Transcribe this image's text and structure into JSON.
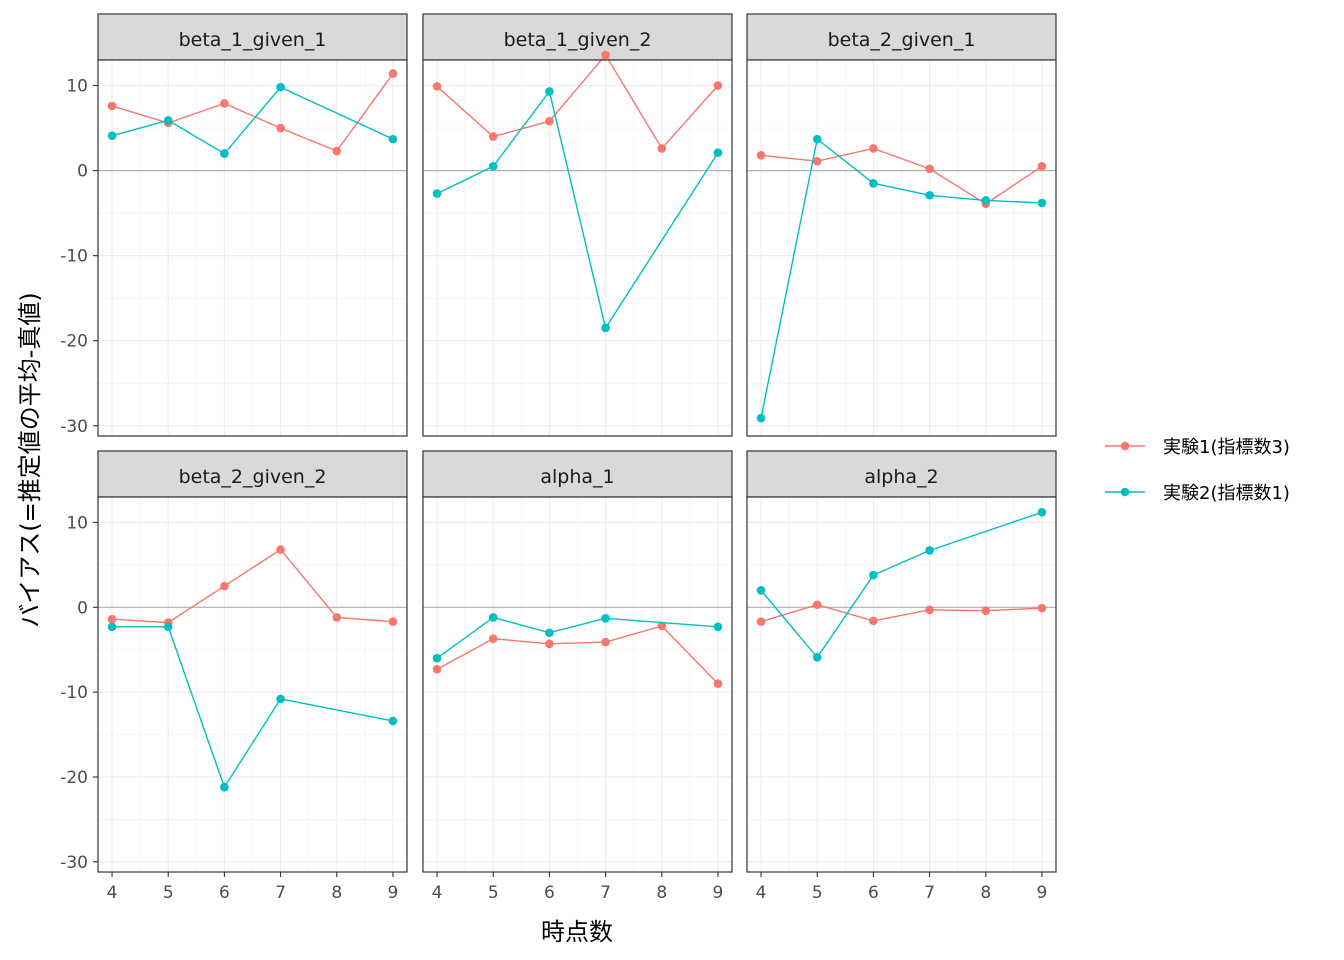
{
  "chart_data": {
    "type": "line",
    "xlabel": "時点数",
    "ylabel": "バイアス(=推定値の平均-真値)",
    "x": [
      4,
      5,
      6,
      7,
      8,
      9
    ],
    "ylim": [
      -31.2,
      13.0
    ],
    "yticks": [
      -30,
      -20,
      -10,
      0,
      10
    ],
    "grid": true,
    "hline": 0,
    "legend_position": "right",
    "series_colors": [
      "#F8766D",
      "#00BFC4"
    ],
    "legend": [
      "実験1(指標数3)",
      "実験2(指標数1)"
    ],
    "panels": [
      {
        "title": "beta_1_given_1",
        "series": [
          {
            "values": [
              7.6,
              5.6,
              7.9,
              5.0,
              2.3,
              11.4
            ]
          },
          {
            "values": [
              4.1,
              5.9,
              2.0,
              9.8,
              null,
              3.7
            ]
          }
        ]
      },
      {
        "title": "beta_1_given_2",
        "series": [
          {
            "values": [
              9.9,
              4.0,
              5.8,
              13.6,
              2.6,
              10.0
            ]
          },
          {
            "values": [
              -2.7,
              0.5,
              9.3,
              -18.5,
              null,
              2.1
            ]
          }
        ]
      },
      {
        "title": "beta_2_given_1",
        "series": [
          {
            "values": [
              1.8,
              1.1,
              2.6,
              0.2,
              -3.9,
              0.5
            ]
          },
          {
            "values": [
              -29.1,
              3.7,
              -1.5,
              -2.9,
              -3.5,
              -3.8
            ]
          }
        ]
      },
      {
        "title": "beta_2_given_2",
        "series": [
          {
            "values": [
              -1.4,
              -1.8,
              2.5,
              6.8,
              -1.2,
              -1.7
            ]
          },
          {
            "values": [
              -2.3,
              -2.3,
              -21.2,
              -10.8,
              null,
              -13.4
            ]
          }
        ]
      },
      {
        "title": "alpha_1",
        "series": [
          {
            "values": [
              -7.3,
              -3.7,
              -4.3,
              -4.1,
              -2.2,
              -9.0
            ]
          },
          {
            "values": [
              -6.0,
              -1.2,
              -3.0,
              -1.3,
              null,
              -2.3
            ]
          }
        ]
      },
      {
        "title": "alpha_2",
        "series": [
          {
            "values": [
              -1.7,
              0.3,
              -1.6,
              -0.3,
              -0.4,
              -0.1
            ]
          },
          {
            "values": [
              2.0,
              -5.9,
              3.8,
              6.7,
              null,
              11.2
            ]
          }
        ]
      }
    ]
  }
}
